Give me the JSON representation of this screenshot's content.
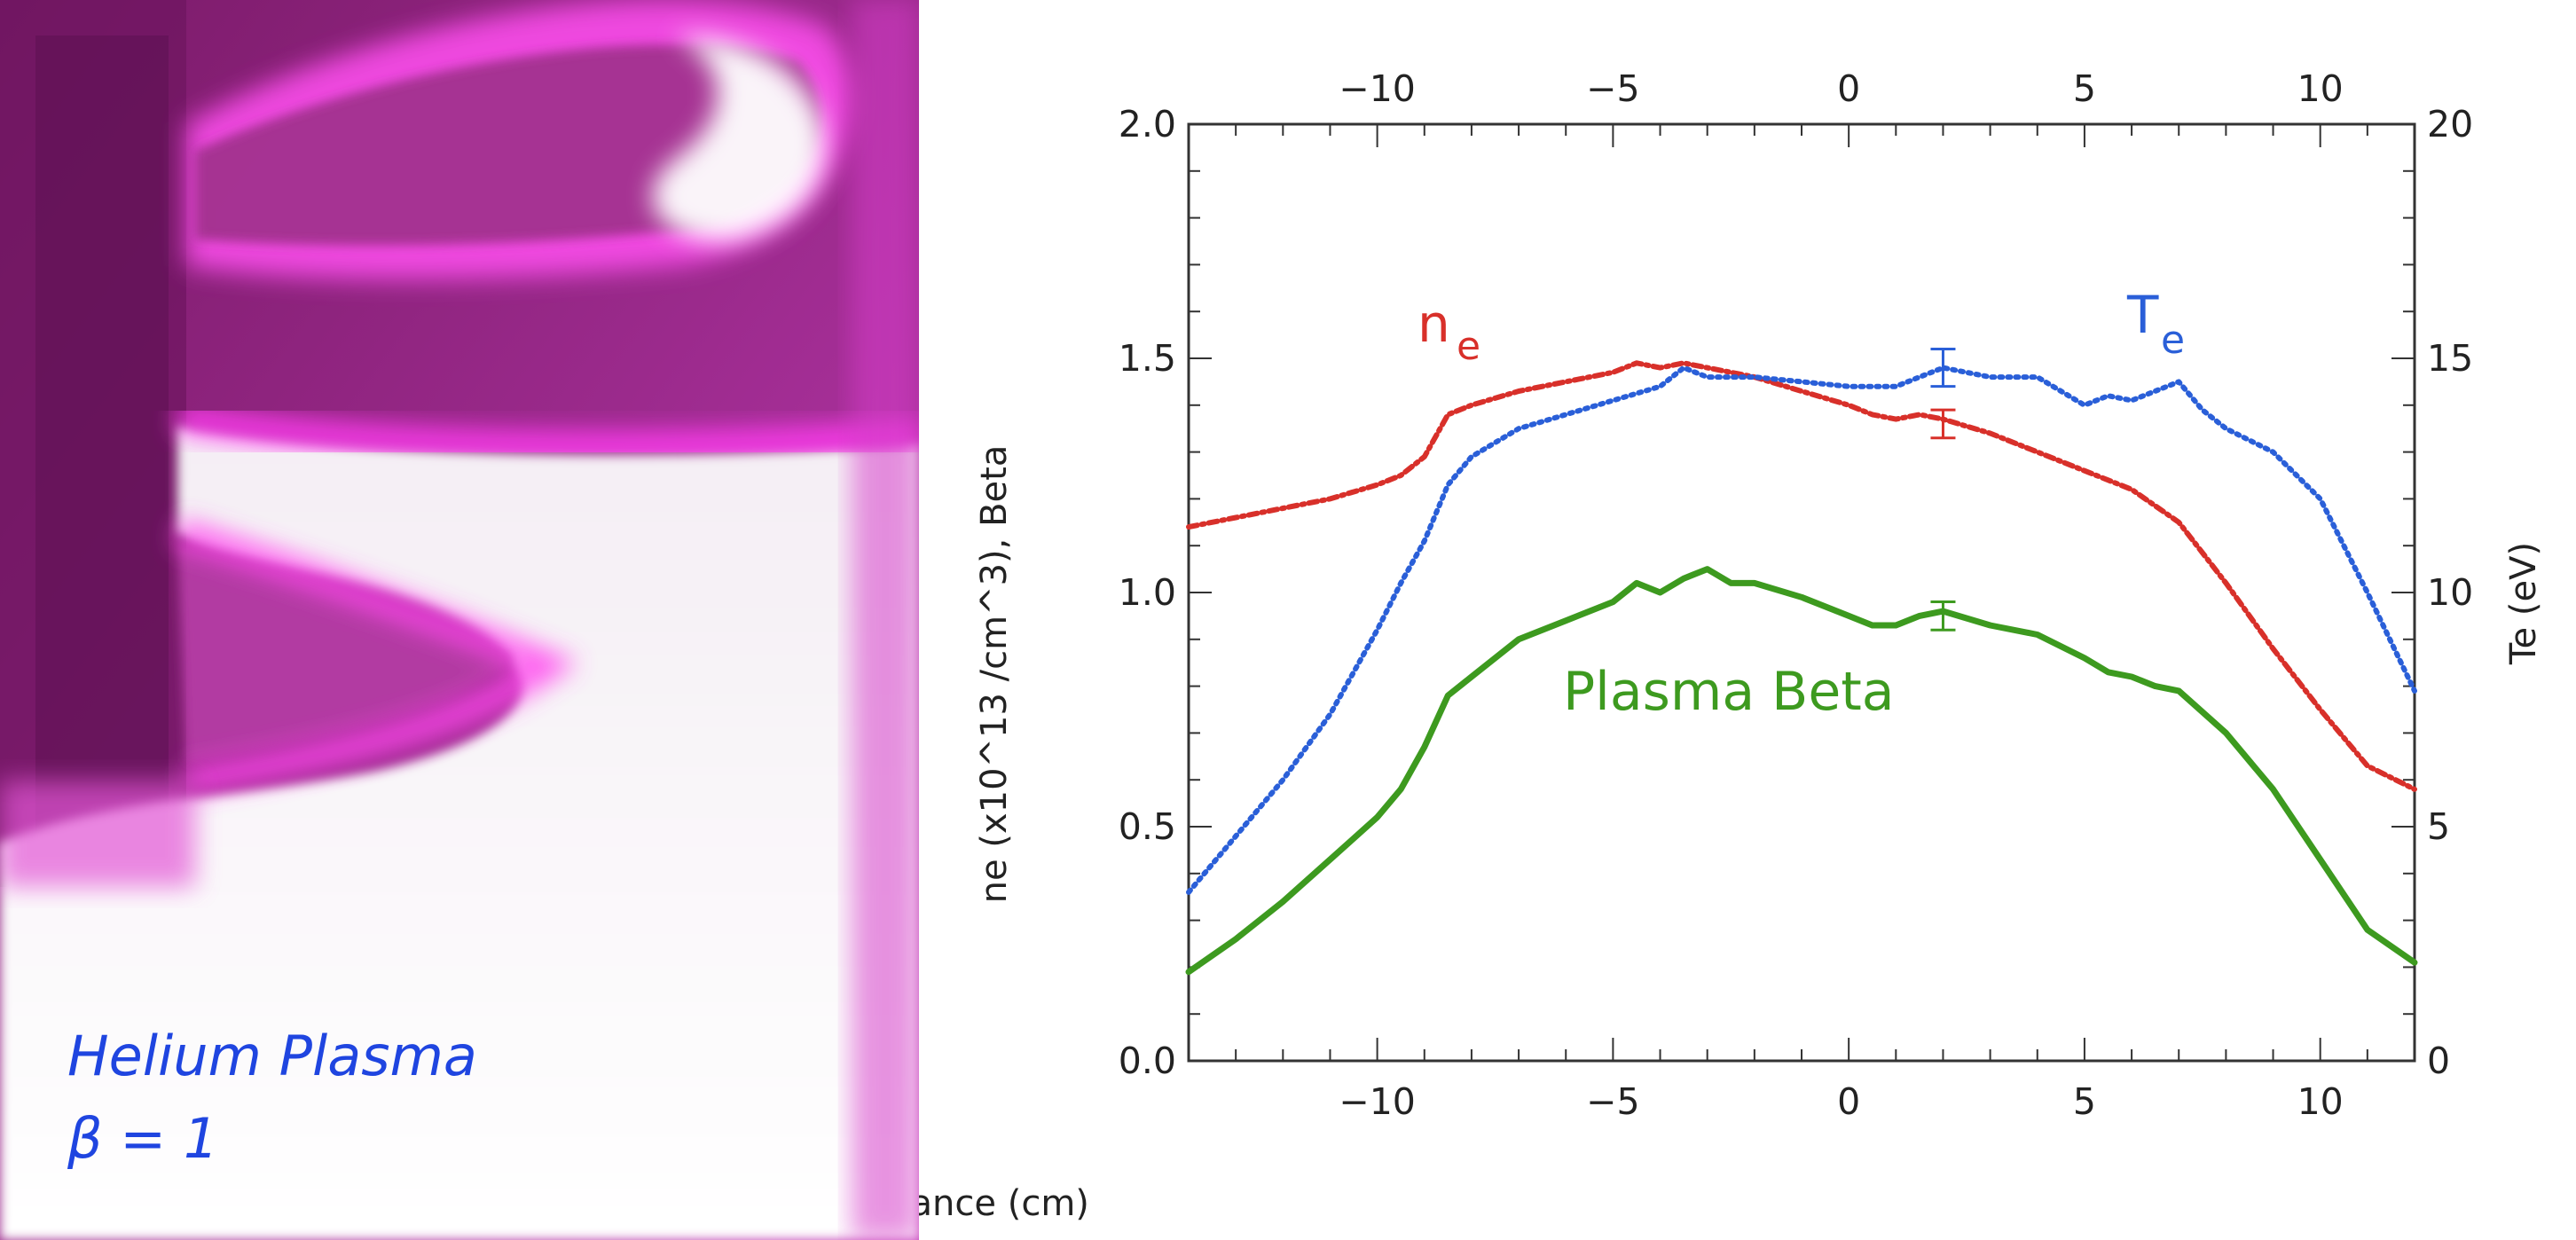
{
  "photo": {
    "caption_line1": "Helium Plasma",
    "caption_line2": "β = 1",
    "caption_color": "#1f45e0",
    "glow_color": "#e23ad6"
  },
  "chart_data": {
    "type": "line",
    "title": "",
    "xlabel": "Distance (cm)",
    "ylabel_left": "ne (x10^13 /cm^3), Beta",
    "ylabel_right": "Te (eV)",
    "xlim": [
      -14,
      12
    ],
    "ylim_left": [
      0,
      2
    ],
    "ylim_right": [
      0,
      20
    ],
    "x_ticks": [
      "−10",
      "−5",
      "0",
      "5",
      "10"
    ],
    "x_tick_values": [
      -10,
      -5,
      0,
      5,
      10
    ],
    "y_left_ticks": [
      "0.0",
      "0.5",
      "1.0",
      "1.5",
      "2.0"
    ],
    "y_left_tick_values": [
      0,
      0.5,
      1.0,
      1.5,
      2.0
    ],
    "y_right_ticks": [
      "0",
      "5",
      "10",
      "15",
      "20"
    ],
    "y_right_tick_values": [
      0,
      5,
      10,
      15,
      20
    ],
    "top_axis_mirrors_x": true,
    "grid": false,
    "series": [
      {
        "name": "n_e",
        "label_main": "n",
        "label_sub": "e",
        "axis": "left",
        "color": "#d8302a",
        "style": "dash-dot",
        "x": [
          -14,
          -13,
          -12,
          -11,
          -10,
          -9.5,
          -9,
          -8.5,
          -8,
          -7,
          -6,
          -5,
          -4.5,
          -4,
          -3.5,
          -3,
          -2.5,
          -2,
          -1,
          0,
          0.5,
          1,
          1.5,
          2,
          3,
          4,
          5,
          6,
          7,
          8,
          9,
          10,
          11,
          12
        ],
        "values": [
          1.14,
          1.16,
          1.18,
          1.2,
          1.23,
          1.25,
          1.29,
          1.38,
          1.4,
          1.43,
          1.45,
          1.47,
          1.49,
          1.48,
          1.49,
          1.48,
          1.47,
          1.46,
          1.43,
          1.4,
          1.38,
          1.37,
          1.38,
          1.37,
          1.34,
          1.3,
          1.26,
          1.22,
          1.15,
          1.02,
          0.88,
          0.75,
          0.63,
          0.58
        ],
        "error_bar": {
          "x": 2,
          "y": 1.36,
          "err": 0.03
        }
      },
      {
        "name": "T_e",
        "label_main": "T",
        "label_sub": "e",
        "axis": "right",
        "color": "#2a5fd8",
        "style": "dotted",
        "x": [
          -14,
          -13,
          -12,
          -11,
          -10,
          -9.5,
          -9,
          -8.5,
          -8,
          -7,
          -6,
          -5,
          -4,
          -3.5,
          -3,
          -2,
          -1,
          0,
          1,
          1.5,
          2,
          3,
          4,
          5,
          5.5,
          6,
          7,
          7.5,
          8,
          9,
          10,
          11,
          12
        ],
        "values": [
          3.6,
          4.8,
          6.0,
          7.4,
          9.2,
          10.2,
          11.1,
          12.3,
          12.9,
          13.5,
          13.8,
          14.1,
          14.4,
          14.8,
          14.6,
          14.6,
          14.5,
          14.4,
          14.4,
          14.6,
          14.8,
          14.6,
          14.6,
          14.0,
          14.2,
          14.1,
          14.5,
          13.9,
          13.5,
          13.0,
          12.0,
          10.0,
          7.9
        ],
        "error_bar": {
          "x": 2,
          "y": 14.8,
          "err": 0.4
        }
      },
      {
        "name": "Plasma Beta",
        "label_main": "Plasma Beta",
        "label_sub": "",
        "axis": "left",
        "color": "#3d9a1f",
        "style": "solid",
        "x": [
          -14,
          -13,
          -12,
          -11,
          -10,
          -9.5,
          -9,
          -8.5,
          -8,
          -7,
          -6,
          -5,
          -4.5,
          -4,
          -3.5,
          -3,
          -2.5,
          -2,
          -1,
          0,
          0.5,
          1,
          1.5,
          2,
          3,
          4,
          5,
          5.5,
          6,
          6.5,
          7,
          8,
          9,
          10,
          11,
          12
        ],
        "values": [
          0.19,
          0.26,
          0.34,
          0.43,
          0.52,
          0.58,
          0.67,
          0.78,
          0.82,
          0.9,
          0.94,
          0.98,
          1.02,
          1.0,
          1.03,
          1.05,
          1.02,
          1.02,
          0.99,
          0.95,
          0.93,
          0.93,
          0.95,
          0.96,
          0.93,
          0.91,
          0.86,
          0.83,
          0.82,
          0.8,
          0.79,
          0.7,
          0.58,
          0.43,
          0.28,
          0.21
        ],
        "error_bar": {
          "x": 2,
          "y": 0.95,
          "err": 0.03
        }
      }
    ]
  }
}
